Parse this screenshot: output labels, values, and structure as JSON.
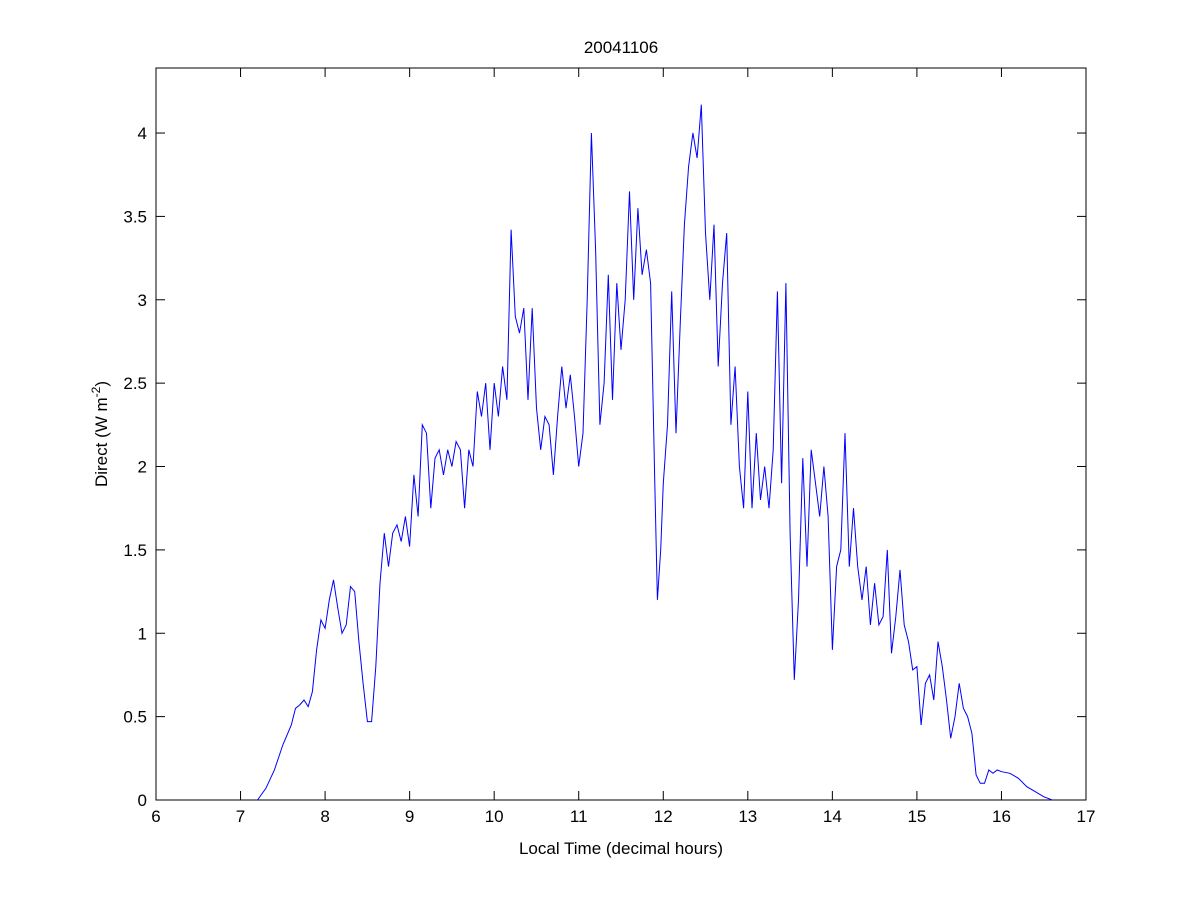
{
  "chart_data": {
    "type": "line",
    "title": "20041106",
    "xlabel": "Local Time (decimal hours)",
    "ylabel_main": "Direct (W m",
    "ylabel_sup": "-2",
    "ylabel_close": ")",
    "xlim": [
      6,
      17
    ],
    "ylim": [
      0,
      4.39
    ],
    "xticks": [
      6,
      7,
      8,
      9,
      10,
      11,
      12,
      13,
      14,
      15,
      16,
      17
    ],
    "xtick_labels": [
      "6",
      "7",
      "8",
      "9",
      "10",
      "11",
      "12",
      "13",
      "14",
      "15",
      "16",
      "17"
    ],
    "yticks": [
      0,
      0.5,
      1,
      1.5,
      2,
      2.5,
      3,
      3.5,
      4
    ],
    "ytick_labels": [
      "0",
      "0.5",
      "1",
      "1.5",
      "2",
      "2.5",
      "3",
      "3.5",
      "4"
    ],
    "grid": false,
    "line_color": "#0000ff",
    "series": [
      {
        "name": "Direct",
        "x": [
          7.2,
          7.3,
          7.4,
          7.5,
          7.6,
          7.65,
          7.7,
          7.75,
          7.8,
          7.85,
          7.9,
          7.95,
          8.0,
          8.05,
          8.1,
          8.15,
          8.2,
          8.25,
          8.3,
          8.35,
          8.4,
          8.45,
          8.5,
          8.55,
          8.6,
          8.65,
          8.7,
          8.75,
          8.8,
          8.85,
          8.9,
          8.95,
          9.0,
          9.05,
          9.1,
          9.15,
          9.2,
          9.25,
          9.3,
          9.35,
          9.4,
          9.45,
          9.5,
          9.55,
          9.6,
          9.65,
          9.7,
          9.75,
          9.8,
          9.85,
          9.9,
          9.95,
          10.0,
          10.05,
          10.1,
          10.15,
          10.2,
          10.25,
          10.3,
          10.35,
          10.4,
          10.45,
          10.5,
          10.55,
          10.6,
          10.65,
          10.7,
          10.75,
          10.8,
          10.85,
          10.9,
          10.95,
          11.0,
          11.05,
          11.1,
          11.15,
          11.2,
          11.25,
          11.3,
          11.35,
          11.4,
          11.45,
          11.5,
          11.55,
          11.6,
          11.65,
          11.7,
          11.75,
          11.8,
          11.85,
          11.9,
          11.93,
          11.97,
          12.0,
          12.05,
          12.1,
          12.15,
          12.2,
          12.25,
          12.3,
          12.35,
          12.4,
          12.45,
          12.5,
          12.55,
          12.6,
          12.65,
          12.7,
          12.75,
          12.8,
          12.85,
          12.9,
          12.95,
          13.0,
          13.05,
          13.1,
          13.15,
          13.2,
          13.25,
          13.3,
          13.35,
          13.4,
          13.45,
          13.5,
          13.55,
          13.6,
          13.65,
          13.7,
          13.75,
          13.8,
          13.85,
          13.9,
          13.95,
          14.0,
          14.05,
          14.1,
          14.15,
          14.2,
          14.25,
          14.3,
          14.35,
          14.4,
          14.45,
          14.5,
          14.55,
          14.6,
          14.65,
          14.7,
          14.75,
          14.8,
          14.85,
          14.9,
          14.95,
          15.0,
          15.05,
          15.1,
          15.15,
          15.2,
          15.25,
          15.3,
          15.35,
          15.4,
          15.45,
          15.5,
          15.55,
          15.6,
          15.65,
          15.7,
          15.75,
          15.8,
          15.85,
          15.9,
          15.95,
          16.0,
          16.1,
          16.2,
          16.3,
          16.4,
          16.5,
          16.6
        ],
        "y": [
          0,
          0.07,
          0.18,
          0.33,
          0.45,
          0.55,
          0.57,
          0.6,
          0.56,
          0.65,
          0.9,
          1.08,
          1.03,
          1.2,
          1.32,
          1.15,
          1.0,
          1.05,
          1.28,
          1.25,
          0.95,
          0.7,
          0.47,
          0.47,
          0.8,
          1.3,
          1.6,
          1.4,
          1.6,
          1.65,
          1.55,
          1.7,
          1.52,
          1.95,
          1.7,
          2.25,
          2.2,
          1.75,
          2.05,
          2.1,
          1.95,
          2.1,
          2.0,
          2.15,
          2.1,
          1.75,
          2.1,
          2.0,
          2.45,
          2.3,
          2.5,
          2.1,
          2.5,
          2.3,
          2.6,
          2.4,
          3.42,
          2.9,
          2.8,
          2.95,
          2.4,
          2.95,
          2.35,
          2.1,
          2.3,
          2.25,
          1.95,
          2.3,
          2.6,
          2.35,
          2.55,
          2.3,
          2.0,
          2.2,
          3.0,
          4.0,
          3.3,
          2.25,
          2.5,
          3.15,
          2.4,
          3.1,
          2.7,
          3.0,
          3.65,
          3.0,
          3.55,
          3.15,
          3.3,
          3.1,
          1.9,
          1.2,
          1.5,
          1.9,
          2.25,
          3.05,
          2.2,
          2.85,
          3.45,
          3.8,
          4.0,
          3.85,
          4.17,
          3.4,
          3.0,
          3.45,
          2.6,
          3.1,
          3.4,
          2.25,
          2.6,
          2.0,
          1.75,
          2.45,
          1.75,
          2.2,
          1.8,
          2.0,
          1.75,
          2.1,
          3.05,
          1.9,
          3.1,
          1.6,
          0.72,
          1.2,
          2.05,
          1.4,
          2.1,
          1.9,
          1.7,
          2.0,
          1.7,
          0.9,
          1.4,
          1.5,
          2.2,
          1.4,
          1.75,
          1.4,
          1.2,
          1.4,
          1.05,
          1.3,
          1.05,
          1.1,
          1.5,
          0.88,
          1.1,
          1.38,
          1.05,
          0.95,
          0.78,
          0.8,
          0.45,
          0.7,
          0.75,
          0.6,
          0.95,
          0.8,
          0.6,
          0.37,
          0.5,
          0.7,
          0.55,
          0.5,
          0.4,
          0.15,
          0.1,
          0.1,
          0.18,
          0.16,
          0.18,
          0.17,
          0.16,
          0.13,
          0.08,
          0.05,
          0.02,
          0
        ]
      }
    ]
  }
}
